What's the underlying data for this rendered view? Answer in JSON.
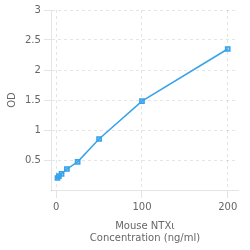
{
  "chart_data": {
    "type": "line",
    "x": [
      1.56,
      3.125,
      6.25,
      12.5,
      25,
      50,
      100,
      200
    ],
    "values": [
      0.2,
      0.23,
      0.27,
      0.35,
      0.47,
      0.85,
      1.48,
      2.35
    ],
    "marker": "square",
    "xlabel": "Mouse NTXι\nConcentration (ng/ml)",
    "ylabel": "OD",
    "xlim": [
      -5,
      212
    ],
    "ylim": [
      0.0,
      3.0
    ],
    "xticks": [
      0,
      100,
      200
    ],
    "yticks": [
      0.5,
      1,
      1.5,
      2,
      2.5,
      3
    ],
    "grid": true
  }
}
